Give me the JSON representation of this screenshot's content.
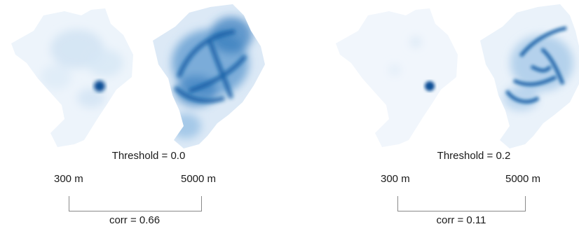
{
  "colors": {
    "heat_low": "#e8f1fa",
    "heat_mid": "#7fb0dc",
    "heat_high": "#0b4f96",
    "bracket": "#8a8a8a"
  },
  "panels": [
    {
      "threshold_label": "Threshold = 0.0",
      "scale_small_label": "300 m",
      "scale_large_label": "5000 m",
      "corr_label": "corr = 0.66"
    },
    {
      "threshold_label": "Threshold = 0.2",
      "scale_small_label": "300 m",
      "scale_large_label": "5000 m",
      "corr_label": "corr = 0.11"
    }
  ]
}
